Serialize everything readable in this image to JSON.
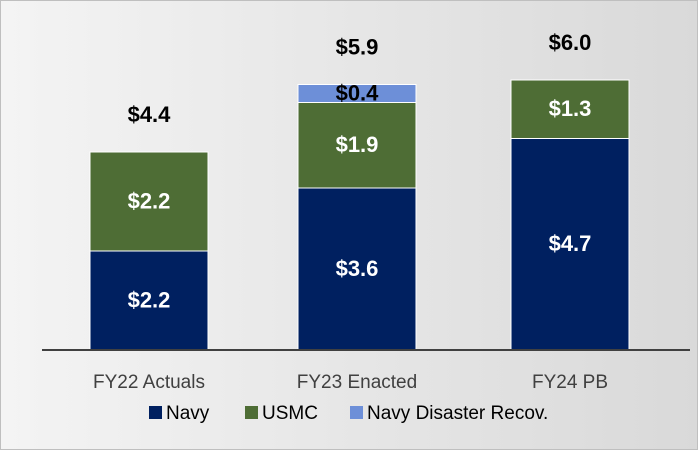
{
  "chart_data": {
    "type": "stacked-bar",
    "categories": [
      "FY22 Actuals",
      "FY23 Enacted",
      "FY24 PB"
    ],
    "series": [
      {
        "name": "Navy",
        "color": "#002060",
        "values": [
          2.2,
          3.6,
          4.7
        ],
        "value_labels": [
          "$2.2",
          "$3.6",
          "$4.7"
        ]
      },
      {
        "name": "USMC",
        "color": "#4e6d35",
        "values": [
          2.2,
          1.9,
          1.3
        ],
        "value_labels": [
          "$2.2",
          "$1.9",
          "$1.3"
        ]
      },
      {
        "name": "Navy Disaster Recov.",
        "color": "#6d8fd8",
        "values": [
          null,
          0.4,
          null
        ],
        "value_labels": [
          null,
          "$0.4",
          null
        ]
      }
    ],
    "totals": {
      "values": [
        4.4,
        5.9,
        6.0
      ],
      "value_labels": [
        "$4.4",
        "$5.9",
        "$6.0"
      ]
    }
  }
}
